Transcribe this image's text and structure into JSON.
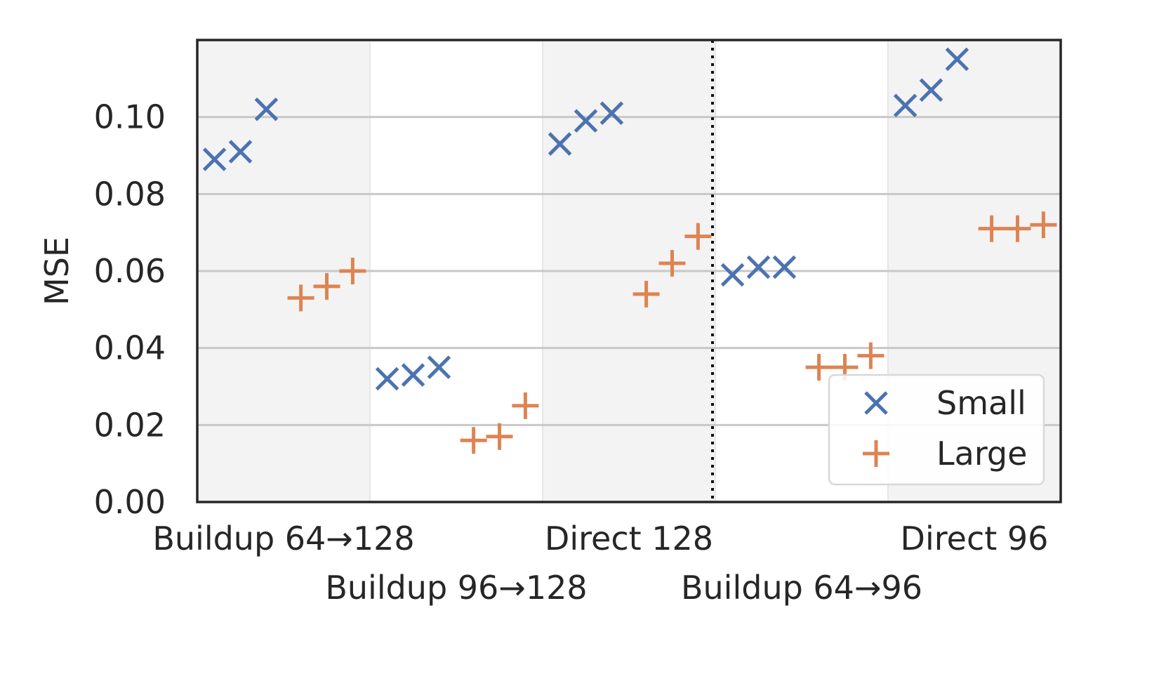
{
  "chart_data": {
    "type": "scatter",
    "title": "",
    "xlabel": "",
    "ylabel": "MSE",
    "ylim": [
      0,
      0.12
    ],
    "yticks": [
      0.0,
      0.02,
      0.04,
      0.06,
      0.08,
      0.1
    ],
    "ytick_labels": [
      "0.00",
      "0.02",
      "0.04",
      "0.06",
      "0.08",
      "0.10"
    ],
    "grid": "horizontal",
    "divider_after_group": 3,
    "legend_position": "bottom-right",
    "groups": [
      "Buildup 64→128",
      "Buildup 96→128",
      "Direct 128",
      "Buildup 64→96",
      "Direct 96"
    ],
    "series": [
      {
        "name": "Small",
        "marker": "x",
        "color": "#4c72b0",
        "values": [
          [
            0.089,
            0.091,
            0.102
          ],
          [
            0.032,
            0.033,
            0.035
          ],
          [
            0.093,
            0.099,
            0.101
          ],
          [
            0.059,
            0.061,
            0.061
          ],
          [
            0.103,
            0.107,
            0.115
          ]
        ]
      },
      {
        "name": "Large",
        "marker": "+",
        "color": "#dd8452",
        "values": [
          [
            0.053,
            0.056,
            0.06
          ],
          [
            0.016,
            0.017,
            0.025
          ],
          [
            0.054,
            0.062,
            0.069
          ],
          [
            0.035,
            0.035,
            0.038
          ],
          [
            0.071,
            0.071,
            0.072
          ]
        ]
      }
    ]
  }
}
